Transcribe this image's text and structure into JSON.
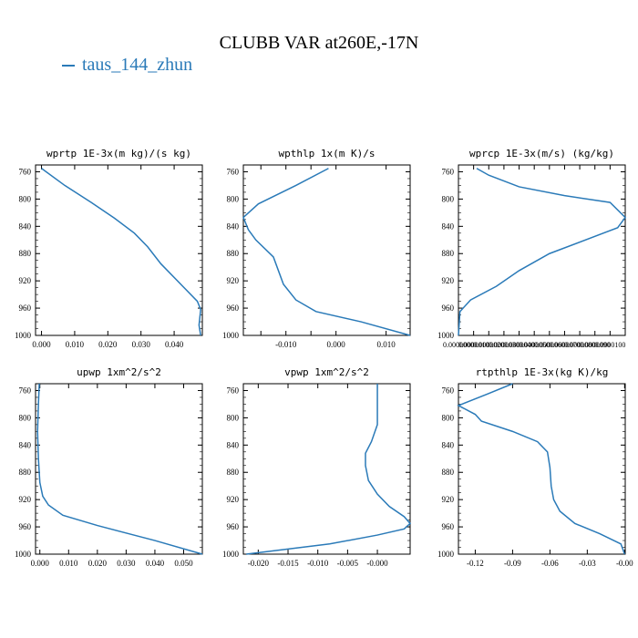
{
  "figure": {
    "title": "CLUBB VAR at260E,-17N",
    "legend": {
      "label": "taus_144_zhun",
      "color": "#2a7ab8"
    }
  },
  "chart_data": [
    {
      "type": "line",
      "title": "wprtp   1E-3x(m kg)/(s kg)",
      "ylim": [
        1000,
        750
      ],
      "yticks": [
        "760",
        "800",
        "840",
        "880",
        "920",
        "960",
        "1000"
      ],
      "xlim": [
        -0.0018,
        0.0485
      ],
      "xticks": [
        0.0,
        0.01,
        0.02,
        0.03,
        0.04
      ],
      "xticklabels": [
        "0.000",
        "0.010",
        "0.020",
        "0.030",
        "0.040"
      ],
      "series": [
        {
          "x": [
            0.0,
            0.007,
            0.015,
            0.022,
            0.028,
            0.032,
            0.036,
            0.042,
            0.047,
            0.048,
            0.0475,
            0.048
          ],
          "y": [
            755,
            780,
            805,
            828,
            850,
            870,
            895,
            925,
            950,
            962,
            985,
            1000
          ]
        }
      ]
    },
    {
      "type": "line",
      "title": "wpthlp   1x(m K)/s",
      "ylim": [
        1000,
        750
      ],
      "yticks": [
        "760",
        "800",
        "840",
        "880",
        "920",
        "960",
        "1000"
      ],
      "xlim": [
        -0.0185,
        0.0148
      ],
      "xticks": [
        -0.015,
        -0.01,
        -0.005,
        0.0,
        0.01
      ],
      "xticklabels": [
        "",
        "-0.010",
        "",
        "0.000",
        "0.010"
      ],
      "series": [
        {
          "x": [
            -0.0015,
            -0.008,
            -0.0155,
            -0.0185,
            -0.0175,
            -0.016,
            -0.0125,
            -0.0115,
            -0.0105,
            -0.008,
            -0.004,
            0.005,
            0.0148
          ],
          "y": [
            755,
            780,
            807,
            827,
            845,
            860,
            885,
            905,
            925,
            948,
            965,
            980,
            1000
          ]
        }
      ]
    },
    {
      "type": "line",
      "title": "wprcp   1E-3x(m/s) (kg/kg)",
      "ylim": [
        1000,
        750
      ],
      "yticks": [
        "760",
        "800",
        "840",
        "880",
        "920",
        "960",
        "1000"
      ],
      "xlim": [
        0.0,
        1.1e-05
      ],
      "xticks": [
        0.0,
        1e-06,
        2e-06,
        3e-06,
        4e-06,
        5e-06,
        6e-06,
        7e-06,
        8e-06,
        9e-06,
        1e-05
      ],
      "xticklabels": [
        "0.0000000",
        "0.0000010",
        "0.0000020",
        "0.0000030",
        "0.0000040",
        "0.0000050",
        "0.0000060",
        "0.0000070",
        "0.0000080",
        "0.0000090",
        "0.0000100"
      ],
      "series": [
        {
          "x": [
            1.2e-06,
            2e-06,
            4e-06,
            7e-06,
            1e-05,
            1.1e-05,
            1.05e-05,
            6e-06,
            4e-06,
            2.5e-06,
            8e-07,
            1e-07,
            0.0
          ],
          "y": [
            755,
            765,
            782,
            795,
            805,
            827,
            842,
            880,
            905,
            928,
            948,
            965,
            1000
          ]
        }
      ]
    },
    {
      "type": "line",
      "title": "upwp   1xm^2/s^2",
      "ylim": [
        1000,
        750
      ],
      "yticks": [
        "760",
        "800",
        "840",
        "880",
        "920",
        "960",
        "1000"
      ],
      "xlim": [
        -0.0015,
        0.0565
      ],
      "xticks": [
        0.0,
        0.01,
        0.02,
        0.03,
        0.04,
        0.05
      ],
      "xticklabels": [
        "0.000",
        "0.010",
        "0.020",
        "0.030",
        "0.040",
        "0.050"
      ],
      "series": [
        {
          "x": [
            -0.0002,
            -0.0005,
            -0.0008,
            -0.0005,
            0.0,
            0.001,
            0.003,
            0.008,
            0.02,
            0.04,
            0.0565
          ],
          "y": [
            750,
            780,
            820,
            860,
            895,
            915,
            928,
            943,
            958,
            980,
            1000
          ]
        }
      ]
    },
    {
      "type": "line",
      "title": "vpwp   1xm^2/s^2",
      "ylim": [
        1000,
        750
      ],
      "yticks": [
        "760",
        "800",
        "840",
        "880",
        "920",
        "960",
        "1000"
      ],
      "xlim": [
        -0.0225,
        0.0055
      ],
      "xticks": [
        -0.02,
        -0.015,
        -0.01,
        -0.005,
        0.0
      ],
      "xticklabels": [
        "-0.020",
        "-0.015",
        "-0.010",
        "-0.005",
        "-0.000"
      ],
      "series": [
        {
          "x": [
            0.0,
            0.0,
            -0.001,
            -0.002,
            -0.002,
            -0.0015,
            0.0,
            0.002,
            0.0045,
            0.0055,
            0.0045,
            0.0,
            -0.008,
            -0.022
          ],
          "y": [
            750,
            810,
            835,
            852,
            870,
            892,
            912,
            930,
            945,
            955,
            963,
            972,
            985,
            1000
          ]
        }
      ]
    },
    {
      "type": "line",
      "title": "rtpthlp   1E-3x(kg K)/kg",
      "ylim": [
        1000,
        750
      ],
      "yticks": [
        "760",
        "800",
        "840",
        "880",
        "920",
        "960",
        "1000"
      ],
      "xlim": [
        -0.1335,
        0.0005
      ],
      "xticks": [
        -0.12,
        -0.09,
        -0.06,
        -0.03,
        0.0
      ],
      "xticklabels": [
        "-0.12",
        "-0.09",
        "-0.06",
        "-0.03",
        "-0.00"
      ],
      "series": [
        {
          "x": [
            -0.09,
            -0.11,
            -0.1335,
            -0.12,
            -0.115,
            -0.09,
            -0.07,
            -0.062,
            -0.06,
            -0.059,
            -0.057,
            -0.052,
            -0.04,
            -0.02,
            -0.003,
            0.0
          ],
          "y": [
            750,
            765,
            782,
            795,
            805,
            820,
            835,
            850,
            873,
            900,
            920,
            937,
            955,
            970,
            985,
            1000
          ]
        }
      ]
    }
  ]
}
